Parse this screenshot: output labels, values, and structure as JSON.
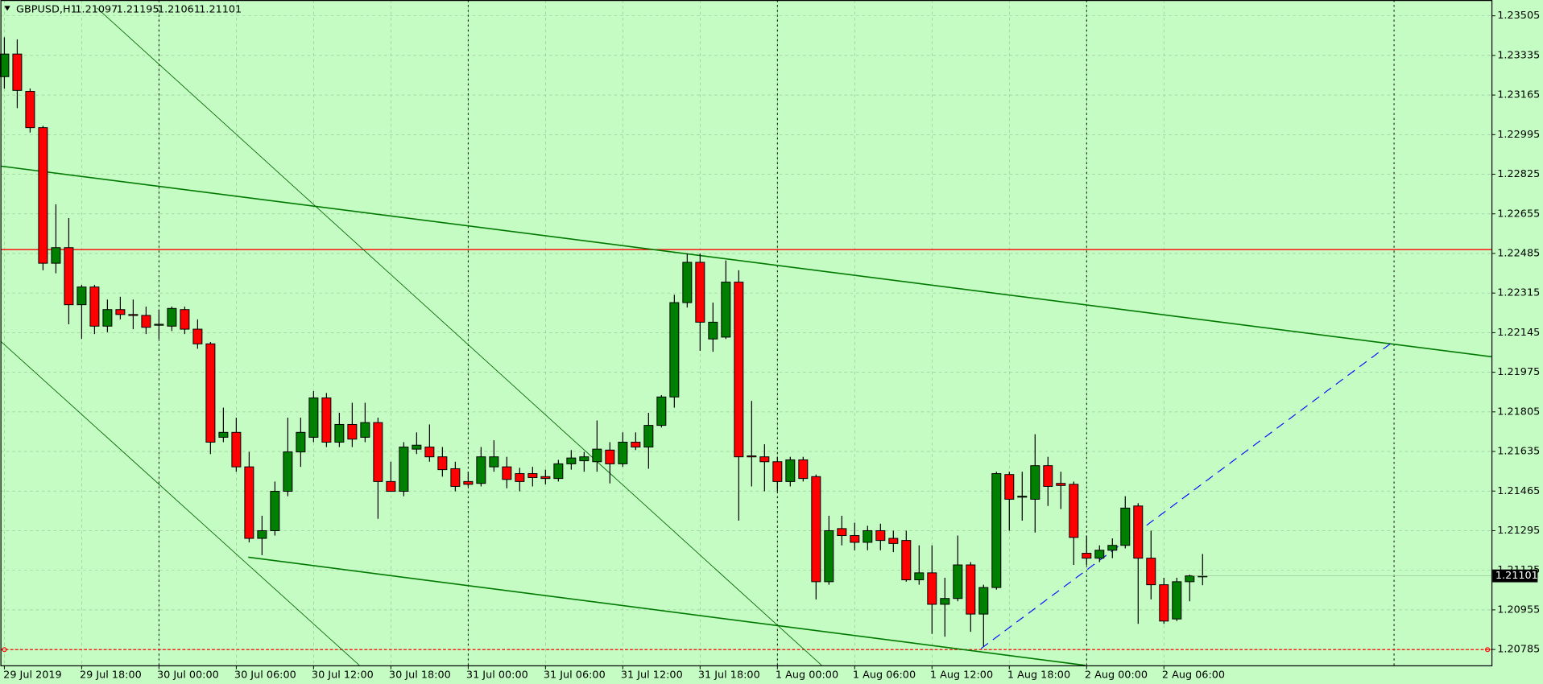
{
  "chart_data": {
    "type": "candlestick",
    "title": "GBPUSD,H1",
    "ohlc_header": [
      1.21097,
      1.21195,
      1.21061,
      1.21101
    ],
    "last_price": 1.21101,
    "background": "#c4fcc4",
    "up_color": "#008000",
    "down_color": "#ff0000",
    "grid": true,
    "categories": [
      "29 Jul 2019",
      null,
      null,
      null,
      null,
      null,
      "29 Jul 18:00",
      null,
      null,
      null,
      null,
      null,
      "30 Jul 00:00",
      null,
      null,
      null,
      null,
      null,
      "30 Jul 06:00",
      null,
      null,
      null,
      null,
      null,
      "30 Jul 12:00",
      null,
      null,
      null,
      null,
      null,
      "30 Jul 18:00",
      null,
      null,
      null,
      null,
      null,
      "31 Jul 00:00",
      null,
      null,
      null,
      null,
      null,
      "31 Jul 06:00",
      null,
      null,
      null,
      null,
      null,
      "31 Jul 12:00",
      null,
      null,
      null,
      null,
      null,
      "31 Jul 18:00",
      null,
      null,
      null,
      null,
      null,
      "1 Aug 00:00",
      null,
      null,
      null,
      null,
      null,
      "1 Aug 06:00",
      null,
      null,
      null,
      null,
      null,
      "1 Aug 12:00",
      null,
      null,
      null,
      null,
      null,
      "1 Aug 18:00",
      null,
      null,
      null,
      null,
      null,
      "2 Aug 00:00",
      null,
      null,
      null,
      null,
      null,
      "2 Aug 06:00",
      null,
      null,
      null
    ],
    "open": [
      1.23244,
      1.23341,
      1.23181,
      1.23025,
      1.22443,
      1.2251,
      1.22265,
      1.22341,
      1.22173,
      1.22244,
      1.22223,
      1.22219,
      1.22177,
      1.22173,
      1.22244,
      1.2216,
      1.22097,
      1.21696,
      1.21717,
      1.21569,
      1.21262,
      1.21295,
      1.21464,
      1.21633,
      1.21696,
      1.21865,
      1.21675,
      1.21751,
      1.21696,
      1.21759,
      1.21506,
      1.21464,
      1.21645,
      1.21654,
      1.21612,
      1.21561,
      1.21506,
      1.21498,
      1.21569,
      1.21569,
      1.2154,
      1.2154,
      1.21527,
      1.21519,
      1.21582,
      1.21595,
      1.21591,
      1.21641,
      1.21582,
      1.21675,
      1.21654,
      1.21747,
      1.21869,
      1.22274,
      1.22447,
      1.22118,
      1.22126,
      1.22362,
      1.21616,
      1.21612,
      1.21591,
      1.21506,
      1.21599,
      1.21527,
      1.21076,
      1.21304,
      1.21274,
      1.21245,
      1.21295,
      1.21262,
      1.21253,
      1.21084,
      1.21114,
      1.20979,
      1.21004,
      1.21148,
      1.20937,
      1.21051,
      1.21536,
      1.21439,
      1.2143,
      1.21574,
      1.21498,
      1.21494,
      1.21198,
      1.21177,
      1.21211,
      1.21232,
      1.21401,
      1.21177,
      1.21063,
      1.20916,
      1.21076,
      1.21097
    ],
    "high": [
      1.23413,
      1.23404,
      1.23193,
      1.23033,
      1.22696,
      1.22637,
      1.2235,
      1.2235,
      1.22287,
      1.22299,
      1.22287,
      1.22257,
      1.22244,
      1.22257,
      1.22257,
      1.22202,
      1.22105,
      1.21823,
      1.2178,
      1.21633,
      1.21359,
      1.21506,
      1.2178,
      1.2178,
      1.21894,
      1.21886,
      1.21801,
      1.21844,
      1.21844,
      1.2178,
      1.21591,
      1.21675,
      1.21717,
      1.21751,
      1.21654,
      1.21591,
      1.21548,
      1.21654,
      1.21683,
      1.21612,
      1.21565,
      1.21569,
      1.21557,
      1.21599,
      1.21641,
      1.21633,
      1.21768,
      1.21675,
      1.21717,
      1.21717,
      1.21801,
      1.21877,
      1.22308,
      1.22485,
      1.22485,
      1.22274,
      1.22455,
      1.22413,
      1.21852,
      1.21666,
      1.21612,
      1.21612,
      1.21612,
      1.21536,
      1.21359,
      1.21359,
      1.21329,
      1.21316,
      1.21325,
      1.21295,
      1.21295,
      1.21232,
      1.21232,
      1.21093,
      1.21274,
      1.2116,
      1.21063,
      1.21548,
      1.21548,
      1.21548,
      1.21709,
      1.21612,
      1.21548,
      1.21506,
      1.21274,
      1.21232,
      1.21262,
      1.21443,
      1.21413,
      1.21295,
      1.21093,
      1.21093,
      1.21106,
      1.21195
    ],
    "low": [
      1.23193,
      1.23109,
      1.23004,
      1.22413,
      1.224,
      1.22181,
      1.22118,
      1.22139,
      1.22147,
      1.22202,
      1.2216,
      1.22139,
      1.22118,
      1.22152,
      1.22139,
      1.22076,
      1.21624,
      1.21675,
      1.21548,
      1.21245,
      1.2119,
      1.21274,
      1.21443,
      1.21569,
      1.21675,
      1.21654,
      1.21654,
      1.21654,
      1.21675,
      1.21346,
      1.21464,
      1.21443,
      1.21624,
      1.21591,
      1.21527,
      1.21464,
      1.21485,
      1.21485,
      1.21548,
      1.21477,
      1.21464,
      1.21485,
      1.21494,
      1.21506,
      1.21557,
      1.21548,
      1.21548,
      1.21498,
      1.21569,
      1.21641,
      1.21561,
      1.21738,
      1.21823,
      1.22253,
      1.22067,
      1.22063,
      1.22118,
      1.21338,
      1.21485,
      1.21464,
      1.21464,
      1.21485,
      1.21506,
      1.21,
      1.21063,
      1.21232,
      1.21211,
      1.21211,
      1.21211,
      1.21203,
      1.21076,
      1.21063,
      1.20852,
      1.2084,
      1.20992,
      1.20861,
      1.20798,
      1.21042,
      1.21295,
      1.21338,
      1.21287,
      1.21401,
      1.21388,
      1.21148,
      1.21148,
      1.2116,
      1.21177,
      1.21219,
      1.20895,
      1.21,
      1.20895,
      1.20907,
      1.20992,
      1.21061
    ],
    "close": [
      1.23341,
      1.23185,
      1.23025,
      1.22443,
      1.2251,
      1.22265,
      1.22341,
      1.22173,
      1.22244,
      1.22223,
      1.22219,
      1.22168,
      1.22181,
      1.22249,
      1.2216,
      1.22097,
      1.21675,
      1.21717,
      1.21569,
      1.21262,
      1.21295,
      1.21464,
      1.21633,
      1.21717,
      1.21865,
      1.21675,
      1.21751,
      1.21688,
      1.21759,
      1.21506,
      1.21464,
      1.21654,
      1.21662,
      1.21612,
      1.21557,
      1.21485,
      1.21494,
      1.21612,
      1.21612,
      1.21515,
      1.21506,
      1.21523,
      1.21519,
      1.21582,
      1.21607,
      1.21612,
      1.21645,
      1.21582,
      1.21675,
      1.21654,
      1.21747,
      1.21869,
      1.22274,
      1.22447,
      1.2219,
      1.2219,
      1.22362,
      1.21612,
      1.21612,
      1.21591,
      1.21506,
      1.21599,
      1.21519,
      1.21076,
      1.21295,
      1.21274,
      1.21245,
      1.21295,
      1.21253,
      1.2124,
      1.21084,
      1.21114,
      1.20979,
      1.21004,
      1.21148,
      1.20937,
      1.21051,
      1.2154,
      1.2143,
      1.21443,
      1.21574,
      1.21485,
      1.21489,
      1.21266,
      1.21177,
      1.21211,
      1.21232,
      1.21392,
      1.21177,
      1.21063,
      1.20907,
      1.21076,
      1.21101,
      1.21101
    ],
    "ylim": [
      1.20717,
      1.23573
    ],
    "yticks": [
      1.23505,
      1.23335,
      1.23165,
      1.22995,
      1.22825,
      1.22655,
      1.22485,
      1.22315,
      1.22145,
      1.21975,
      1.21805,
      1.21635,
      1.21465,
      1.21295,
      1.21125,
      1.20955,
      1.20785
    ]
  }
}
